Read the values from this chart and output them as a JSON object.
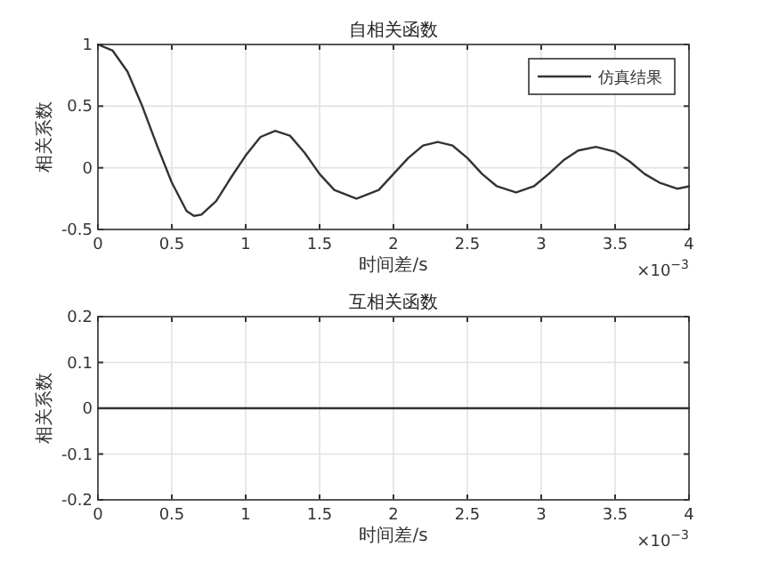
{
  "chart_data": [
    {
      "type": "line",
      "title": "自相关函数",
      "xlabel": "时间差/s",
      "ylabel": "相关系数",
      "xlim": [
        0,
        4
      ],
      "ylim": [
        -0.5,
        1
      ],
      "xticks": [
        0,
        0.5,
        1,
        1.5,
        2,
        2.5,
        3,
        3.5,
        4
      ],
      "yticks": [
        -0.5,
        0,
        0.5,
        1
      ],
      "grid": true,
      "legend": "top right",
      "annotations": [
        "×10$^{−3}$"
      ],
      "x": [
        0,
        0.1,
        0.2,
        0.3,
        0.4,
        0.5,
        0.6,
        0.65,
        0.7,
        0.8,
        0.9,
        1,
        1.1,
        1.2,
        1.3,
        1.4,
        1.5,
        1.6,
        1.75,
        1.9,
        2,
        2.1,
        2.2,
        2.3,
        2.4,
        2.5,
        2.6,
        2.7,
        2.83,
        2.95,
        3.05,
        3.15,
        3.25,
        3.37,
        3.5,
        3.6,
        3.7,
        3.8,
        3.92,
        4
      ],
      "series": [
        {
          "name": "仿真结果",
          "color": "#333333",
          "values": [
            1,
            0.95,
            0.78,
            0.5,
            0.18,
            -0.12,
            -0.35,
            -0.39,
            -0.38,
            -0.27,
            -0.08,
            0.1,
            0.25,
            0.3,
            0.26,
            0.12,
            -0.05,
            -0.18,
            -0.25,
            -0.18,
            -0.05,
            0.08,
            0.18,
            0.21,
            0.18,
            0.08,
            -0.05,
            -0.15,
            -0.2,
            -0.15,
            -0.05,
            0.06,
            0.14,
            0.17,
            0.13,
            0.05,
            -0.05,
            -0.12,
            -0.17,
            -0.15
          ]
        }
      ]
    },
    {
      "type": "line",
      "title": "互相关函数",
      "xlabel": "时间差/s",
      "ylabel": "相关系数",
      "xlim": [
        0,
        4
      ],
      "ylim": [
        -0.2,
        0.2
      ],
      "xticks": [
        0,
        0.5,
        1,
        1.5,
        2,
        2.5,
        3,
        3.5,
        4
      ],
      "yticks": [
        -0.2,
        -0.1,
        0,
        0.1,
        0.2
      ],
      "grid": true,
      "annotations": [
        "×10$^{−3}$"
      ],
      "x": [
        0,
        1,
        2,
        3,
        4
      ],
      "series": [
        {
          "color": "#333333",
          "values": [
            0,
            0,
            0,
            0,
            0
          ]
        }
      ]
    }
  ]
}
